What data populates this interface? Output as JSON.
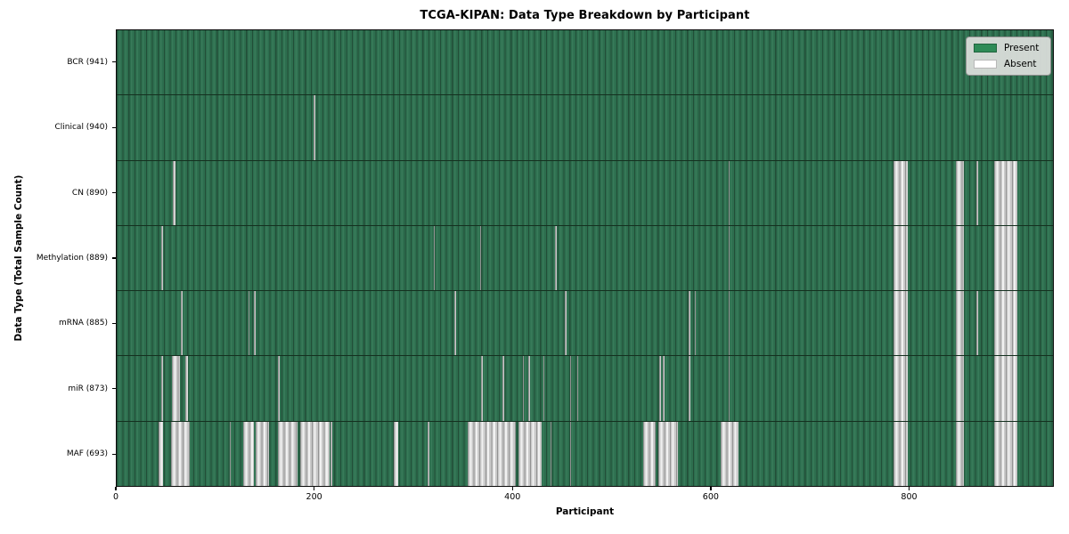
{
  "title": "TCGA-KIPAN: Data Type Breakdown by Participant",
  "axes": {
    "xlabel": "Participant",
    "ylabel": "Data Type (Total Sample Count)"
  },
  "legend": {
    "items": [
      {
        "label": "Present",
        "color": "#2e8b57"
      },
      {
        "label": "Absent",
        "color": "#ffffff"
      }
    ]
  },
  "chart_data": {
    "type": "heatmap",
    "title": "TCGA-KIPAN: Data Type Breakdown by Participant",
    "xlabel": "Participant",
    "ylabel": "Data Type (Total Sample Count)",
    "legend_position": "upper right",
    "x_max": 946,
    "x_ticks": [
      {
        "label": "0",
        "value": 0
      },
      {
        "label": "200",
        "value": 200
      },
      {
        "label": "400",
        "value": 400
      },
      {
        "label": "600",
        "value": 600
      },
      {
        "label": "800",
        "value": 800
      }
    ],
    "colors": {
      "present": "#2e8b57",
      "absent": "#ffffff"
    },
    "rows": [
      {
        "name": "bcr",
        "label": "BCR (941)",
        "total_samples": 941,
        "absent_intervals": []
      },
      {
        "name": "clinical",
        "label": "Clinical (940)",
        "total_samples": 940,
        "absent_intervals": [
          [
            199,
            2
          ]
        ]
      },
      {
        "name": "cn",
        "label": "CN (890)",
        "total_samples": 890,
        "absent_intervals": [
          [
            57,
            2
          ],
          [
            618,
            1.5
          ],
          [
            785,
            14
          ],
          [
            848,
            8
          ],
          [
            869,
            1.5
          ],
          [
            887,
            23
          ]
        ]
      },
      {
        "name": "methylation",
        "label": "Methylation (889)",
        "total_samples": 889,
        "absent_intervals": [
          [
            45,
            1.5
          ],
          [
            320,
            1.5
          ],
          [
            367,
            1.5
          ],
          [
            443,
            1.5
          ],
          [
            618,
            1.5
          ],
          [
            785,
            14
          ],
          [
            848,
            8
          ],
          [
            887,
            23
          ]
        ]
      },
      {
        "name": "mrna",
        "label": "mRNA (885)",
        "total_samples": 885,
        "absent_intervals": [
          [
            65,
            1.5
          ],
          [
            133,
            1.5
          ],
          [
            139,
            1.5
          ],
          [
            341,
            1.5
          ],
          [
            453,
            1.5
          ],
          [
            578,
            1.5
          ],
          [
            584,
            1.5
          ],
          [
            618,
            1.5
          ],
          [
            785,
            14
          ],
          [
            848,
            8
          ],
          [
            869,
            1.5
          ],
          [
            887,
            23
          ]
        ]
      },
      {
        "name": "mir",
        "label": "miR (873)",
        "total_samples": 873,
        "absent_intervals": [
          [
            45,
            1.5
          ],
          [
            56,
            8
          ],
          [
            69,
            3
          ],
          [
            163,
            1.5
          ],
          [
            368,
            1.5
          ],
          [
            390,
            1
          ],
          [
            410,
            1.5
          ],
          [
            416,
            1.5
          ],
          [
            431,
            1.5
          ],
          [
            458,
            1.5
          ],
          [
            465,
            1.5
          ],
          [
            548,
            2
          ],
          [
            552,
            2
          ],
          [
            578,
            1.5
          ],
          [
            618,
            1.5
          ],
          [
            785,
            14
          ],
          [
            848,
            8
          ],
          [
            887,
            23
          ]
        ]
      },
      {
        "name": "maf",
        "label": "MAF (693)",
        "total_samples": 693,
        "absent_intervals": [
          [
            42,
            5
          ],
          [
            55,
            19
          ],
          [
            114,
            1.5
          ],
          [
            128,
            11
          ],
          [
            140,
            14
          ],
          [
            163,
            20
          ],
          [
            185,
            30
          ],
          [
            216,
            1.5
          ],
          [
            280,
            4
          ],
          [
            314,
            2
          ],
          [
            355,
            48
          ],
          [
            406,
            23
          ],
          [
            438,
            1.5
          ],
          [
            458,
            1
          ],
          [
            532,
            13
          ],
          [
            547,
            20
          ],
          [
            610,
            18
          ],
          [
            785,
            14
          ],
          [
            848,
            8
          ],
          [
            887,
            23
          ]
        ]
      }
    ]
  }
}
